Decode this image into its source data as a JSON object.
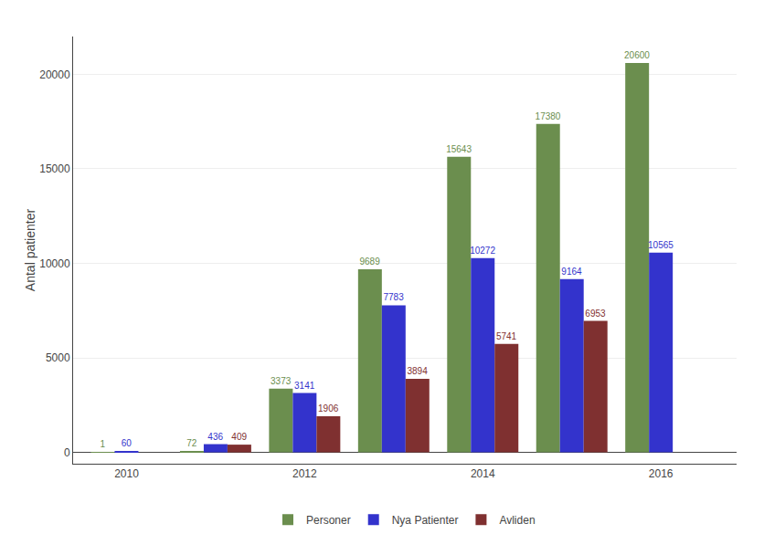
{
  "chart_data": {
    "type": "bar",
    "x": [
      2010,
      2011,
      2012,
      2013,
      2014,
      2015,
      2016
    ],
    "series": [
      {
        "name": "Personer",
        "color": "#6b8e4e",
        "values": [
          1,
          72,
          3373,
          9689,
          15643,
          17380,
          20600
        ]
      },
      {
        "name": "Nya Patienter",
        "color": "#3333cc",
        "values": [
          60,
          436,
          3141,
          7783,
          10272,
          9164,
          10565
        ]
      },
      {
        "name": "Avliden",
        "color": "#7f3030",
        "values": [
          null,
          409,
          1906,
          3894,
          5741,
          6953,
          null
        ]
      }
    ],
    "ylabel": "Antal patienter",
    "xlim": [
      2009.4,
      2016.85
    ],
    "xticks": [
      2010,
      2012,
      2014,
      2016
    ],
    "ylim": [
      -600,
      22000
    ],
    "yticks": [
      0,
      5000,
      10000,
      15000,
      20000
    ],
    "grid": true,
    "legend": "bottom",
    "data_labels": true
  }
}
